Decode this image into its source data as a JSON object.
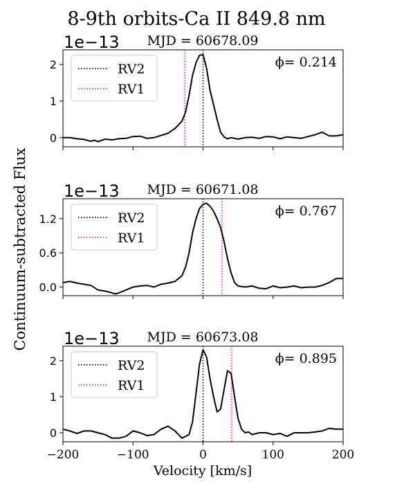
{
  "figure": {
    "title": "8-9th orbits-Ca II 849.8 nm",
    "xlabel": "Velocity [km/s]",
    "ylabel": "Continuum-subtracted Flux",
    "colors": {
      "rv2": "#000000",
      "rv1": "#ff00ff",
      "spectrum": "#000000"
    }
  },
  "chart_data": [
    {
      "type": "line",
      "mjd_label": "MJD = 60678.09",
      "offset_label": "1e−13",
      "phase_label": "ϕ= 0.214",
      "legend": [
        "RV2",
        "RV1"
      ],
      "legend_position": "upper-left",
      "rv2": 0,
      "rv1": -26,
      "xlim": [
        -200,
        200
      ],
      "ylim": [
        -0.25,
        2.4
      ],
      "yticks": [
        0,
        1,
        2
      ],
      "ytick_labels": [
        "0",
        "1",
        "2"
      ],
      "x": [
        -200,
        -190,
        -180,
        -170,
        -160,
        -155,
        -150,
        -140,
        -130,
        -120,
        -110,
        -100,
        -90,
        -80,
        -70,
        -60,
        -50,
        -40,
        -30,
        -25,
        -20,
        -15,
        -10,
        -5,
        0,
        5,
        10,
        15,
        20,
        25,
        30,
        35,
        40,
        50,
        60,
        70,
        80,
        90,
        100,
        110,
        120,
        130,
        140,
        150,
        160,
        170,
        180,
        190,
        200
      ],
      "y": [
        0.0,
        0.0,
        -0.03,
        -0.05,
        -0.1,
        -0.07,
        -0.11,
        -0.04,
        -0.06,
        -0.03,
        -0.02,
        0.03,
        0.04,
        -0.02,
        0.0,
        0.06,
        0.12,
        0.25,
        0.45,
        0.7,
        1.15,
        1.7,
        2.05,
        2.25,
        2.27,
        1.9,
        1.3,
        0.9,
        0.5,
        0.15,
        0.02,
        -0.03,
        0.0,
        -0.04,
        0.0,
        0.01,
        -0.02,
        0.03,
        0.02,
        -0.03,
        0.02,
        0.0,
        -0.02,
        0.03,
        0.08,
        0.15,
        0.05,
        0.05,
        0.08
      ]
    },
    {
      "type": "line",
      "mjd_label": "MJD = 60671.08",
      "offset_label": "1e−13",
      "phase_label": "ϕ= 0.767",
      "legend": [
        "RV2",
        "RV1"
      ],
      "legend_position": "upper-left",
      "rv2": 0,
      "rv1": 27,
      "xlim": [
        -200,
        200
      ],
      "ylim": [
        -0.15,
        1.55
      ],
      "yticks": [
        0,
        0.6,
        1.2
      ],
      "ytick_labels": [
        "0.0",
        "0.6",
        "1.2"
      ],
      "x": [
        -200,
        -190,
        -180,
        -170,
        -160,
        -150,
        -140,
        -130,
        -125,
        -120,
        -110,
        -100,
        -90,
        -80,
        -70,
        -60,
        -50,
        -40,
        -30,
        -25,
        -20,
        -15,
        -10,
        -5,
        0,
        5,
        10,
        15,
        20,
        25,
        30,
        35,
        40,
        45,
        50,
        60,
        70,
        80,
        90,
        100,
        110,
        120,
        130,
        140,
        150,
        160,
        170,
        180,
        190,
        200
      ],
      "y": [
        0.08,
        0.1,
        0.07,
        0.05,
        0.03,
        -0.05,
        -0.07,
        -0.1,
        -0.12,
        -0.1,
        -0.05,
        0.0,
        0.02,
        0.03,
        0.0,
        0.05,
        0.07,
        0.1,
        0.2,
        0.35,
        0.6,
        0.95,
        1.2,
        1.38,
        1.45,
        1.47,
        1.42,
        1.33,
        1.2,
        1.05,
        0.8,
        0.5,
        0.25,
        0.08,
        0.02,
        0.0,
        0.02,
        -0.02,
        -0.03,
        0.02,
        -0.01,
        0.0,
        0.02,
        -0.01,
        0.0,
        0.0,
        0.03,
        0.08,
        0.15,
        0.15
      ]
    },
    {
      "type": "line",
      "mjd_label": "MJD = 60673.08",
      "offset_label": "1e−13",
      "phase_label": "ϕ= 0.895",
      "legend": [
        "RV2",
        "RV1"
      ],
      "legend_position": "upper-left",
      "rv2": 0,
      "rv1": 41,
      "xlim": [
        -200,
        200
      ],
      "ylim": [
        -0.25,
        2.4
      ],
      "yticks": [
        0,
        1,
        2
      ],
      "ytick_labels": [
        "0",
        "1",
        "2"
      ],
      "x": [
        -200,
        -190,
        -180,
        -170,
        -160,
        -150,
        -140,
        -130,
        -120,
        -110,
        -100,
        -90,
        -80,
        -70,
        -60,
        -50,
        -40,
        -30,
        -20,
        -15,
        -10,
        -5,
        0,
        5,
        10,
        15,
        20,
        25,
        30,
        35,
        40,
        45,
        50,
        55,
        60,
        65,
        70,
        80,
        90,
        100,
        110,
        120,
        130,
        140,
        150,
        160,
        170,
        180,
        190,
        200
      ],
      "y": [
        0.1,
        0.05,
        -0.02,
        0.05,
        0.05,
        0.0,
        -0.05,
        -0.15,
        -0.15,
        -0.1,
        0.05,
        0.0,
        -0.08,
        -0.05,
        0.1,
        0.18,
        0.05,
        -0.15,
        -0.05,
        0.3,
        1.1,
        1.9,
        2.3,
        2.1,
        1.5,
        1.0,
        0.58,
        0.65,
        1.2,
        1.72,
        1.65,
        1.0,
        0.4,
        0.1,
        0.0,
        0.02,
        -0.05,
        0.0,
        0.0,
        -0.05,
        -0.02,
        -0.1,
        0.0,
        0.0,
        0.0,
        0.02,
        0.05,
        0.12,
        0.1,
        0.1
      ]
    }
  ],
  "xaxis": {
    "ticks": [
      -200,
      -100,
      0,
      100,
      200
    ],
    "tick_labels": [
      "−200",
      "−100",
      "0",
      "100",
      "200"
    ]
  }
}
